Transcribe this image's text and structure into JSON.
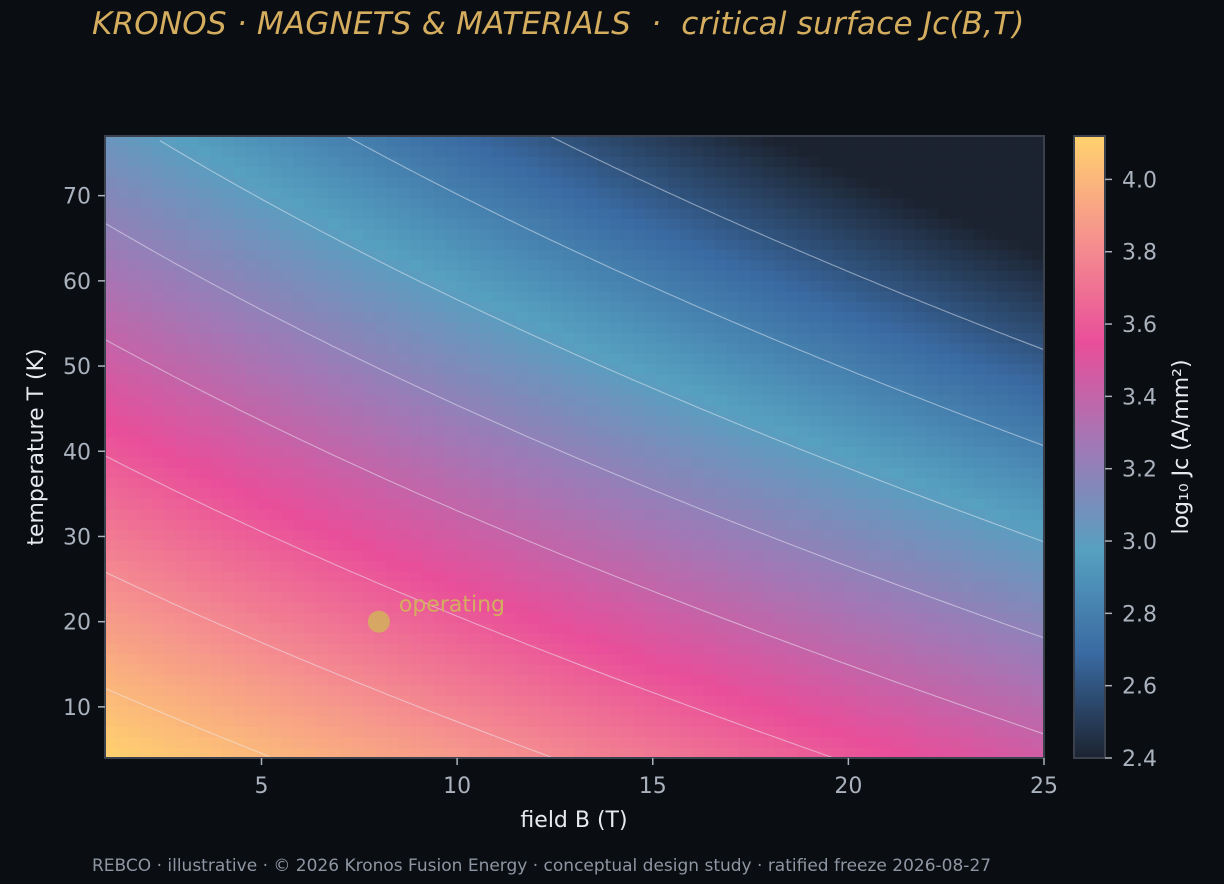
{
  "title": "KRONOS · MAGNETS & MATERIALS  ·  critical surface Jc(B,T)",
  "footer": "REBCO · illustrative · © 2026 Kronos Fusion Energy · conceptual design study · ratified freeze 2026-08-27",
  "colors": {
    "background": "#0a0d12",
    "title": "#d4ad5e",
    "marker": "#d4ad5e",
    "colormap": [
      "#1c2330",
      "#3a6aa2",
      "#56a0c0",
      "#a079b6",
      "#e94e9a",
      "#f5918e",
      "#ffd26e"
    ]
  },
  "chart_data": {
    "type": "heatmap",
    "title": "",
    "xlabel": "field B (T)",
    "ylabel": "temperature T (K)",
    "colorbar_label": "log₁₀ Jc (A/mm²)",
    "xlim": [
      1,
      25
    ],
    "ylim": [
      4,
      77
    ],
    "clim": [
      2.4,
      4.12
    ],
    "xticks": [
      5,
      10,
      15,
      20,
      25
    ],
    "yticks": [
      10,
      20,
      30,
      40,
      50,
      60,
      70
    ],
    "cticks": [
      2.4,
      2.6,
      2.8,
      3.0,
      3.2,
      3.4,
      3.6,
      3.8,
      4.0
    ],
    "contour_levels": [
      2.6,
      2.8,
      3.0,
      3.2,
      3.4,
      3.6,
      3.8,
      4.0
    ],
    "surface_samples": [
      {
        "B": 1,
        "T": 4,
        "log10_Jc": 4.12
      },
      {
        "B": 25,
        "T": 4,
        "log10_Jc": 3.45
      },
      {
        "B": 1,
        "T": 77,
        "log10_Jc": 3.05
      },
      {
        "B": 25,
        "T": 77,
        "log10_Jc": 2.4
      }
    ],
    "annotations": [
      {
        "label": "operating",
        "B": 8,
        "T": 20
      }
    ]
  }
}
